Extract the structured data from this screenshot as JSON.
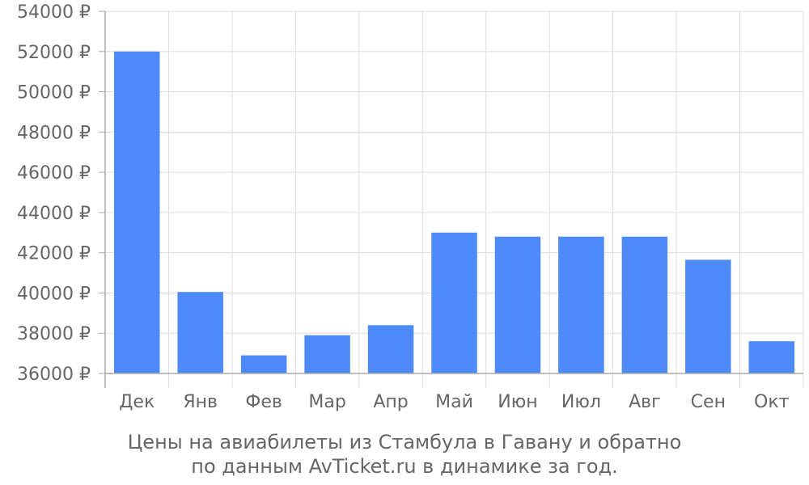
{
  "chart_data": {
    "type": "bar",
    "categories": [
      "Дек",
      "Янв",
      "Фев",
      "Мар",
      "Апр",
      "Май",
      "Июн",
      "Июл",
      "Авг",
      "Сен",
      "Окт"
    ],
    "values": [
      52000,
      40050,
      36900,
      37900,
      38400,
      43000,
      42800,
      42800,
      42800,
      41650,
      37600
    ],
    "ylim": [
      36000,
      54000
    ],
    "yticks": [
      36000,
      38000,
      40000,
      42000,
      44000,
      46000,
      48000,
      50000,
      52000,
      54000
    ],
    "y_tick_suffix": " ₽",
    "grid": true,
    "bar_color": "#4e8af7",
    "grid_color": "#dddddd",
    "axis_color": "#aaaaaa",
    "label_color": "#666666"
  },
  "caption": {
    "line1": "Цены на авиабилеты из Стамбула в Гавану и обратно",
    "line2": "по данным AvTicket.ru в динамике за год."
  }
}
